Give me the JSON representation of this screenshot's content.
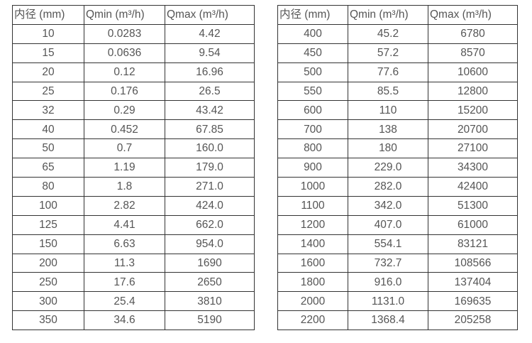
{
  "page": {
    "background_color": "#ffffff",
    "border_color": "#333333",
    "text_color": "#555555"
  },
  "chart_data": [
    {
      "type": "table",
      "columns": [
        "内径 (mm)",
        "Qmin (m³/h)",
        "Qmax (m³/h)"
      ],
      "rows": [
        [
          "10",
          "0.0283",
          "4.42"
        ],
        [
          "15",
          "0.0636",
          "9.54"
        ],
        [
          "20",
          "0.12",
          "16.96"
        ],
        [
          "25",
          "0.176",
          "26.5"
        ],
        [
          "32",
          "0.29",
          "43.42"
        ],
        [
          "40",
          "0.452",
          "67.85"
        ],
        [
          "50",
          "0.7",
          "160.0"
        ],
        [
          "65",
          "1.19",
          "179.0"
        ],
        [
          "80",
          "1.8",
          "271.0"
        ],
        [
          "100",
          "2.82",
          "424.0"
        ],
        [
          "125",
          "4.41",
          "662.0"
        ],
        [
          "150",
          "6.63",
          "954.0"
        ],
        [
          "200",
          "11.3",
          "1690"
        ],
        [
          "250",
          "17.6",
          "2650"
        ],
        [
          "300",
          "25.4",
          "3810"
        ],
        [
          "350",
          "34.6",
          "5190"
        ]
      ]
    },
    {
      "type": "table",
      "columns": [
        "内径 (mm)",
        "Qmin (m³/h)",
        "Qmax (m³/h)"
      ],
      "rows": [
        [
          "400",
          "45.2",
          "6780"
        ],
        [
          "450",
          "57.2",
          "8570"
        ],
        [
          "500",
          "77.6",
          "10600"
        ],
        [
          "550",
          "85.5",
          "12800"
        ],
        [
          "600",
          "110",
          "15200"
        ],
        [
          "700",
          "138",
          "20700"
        ],
        [
          "800",
          "180",
          "27100"
        ],
        [
          "900",
          "229.0",
          "34300"
        ],
        [
          "1000",
          "282.0",
          "42400"
        ],
        [
          "1100",
          "342.0",
          "51300"
        ],
        [
          "1200",
          "407.0",
          "61000"
        ],
        [
          "1400",
          "554.1",
          "83121"
        ],
        [
          "1600",
          "732.7",
          "108566"
        ],
        [
          "1800",
          "916.0",
          "137404"
        ],
        [
          "2000",
          "1131.0",
          "169635"
        ],
        [
          "2200",
          "1368.4",
          "205258"
        ]
      ]
    }
  ]
}
